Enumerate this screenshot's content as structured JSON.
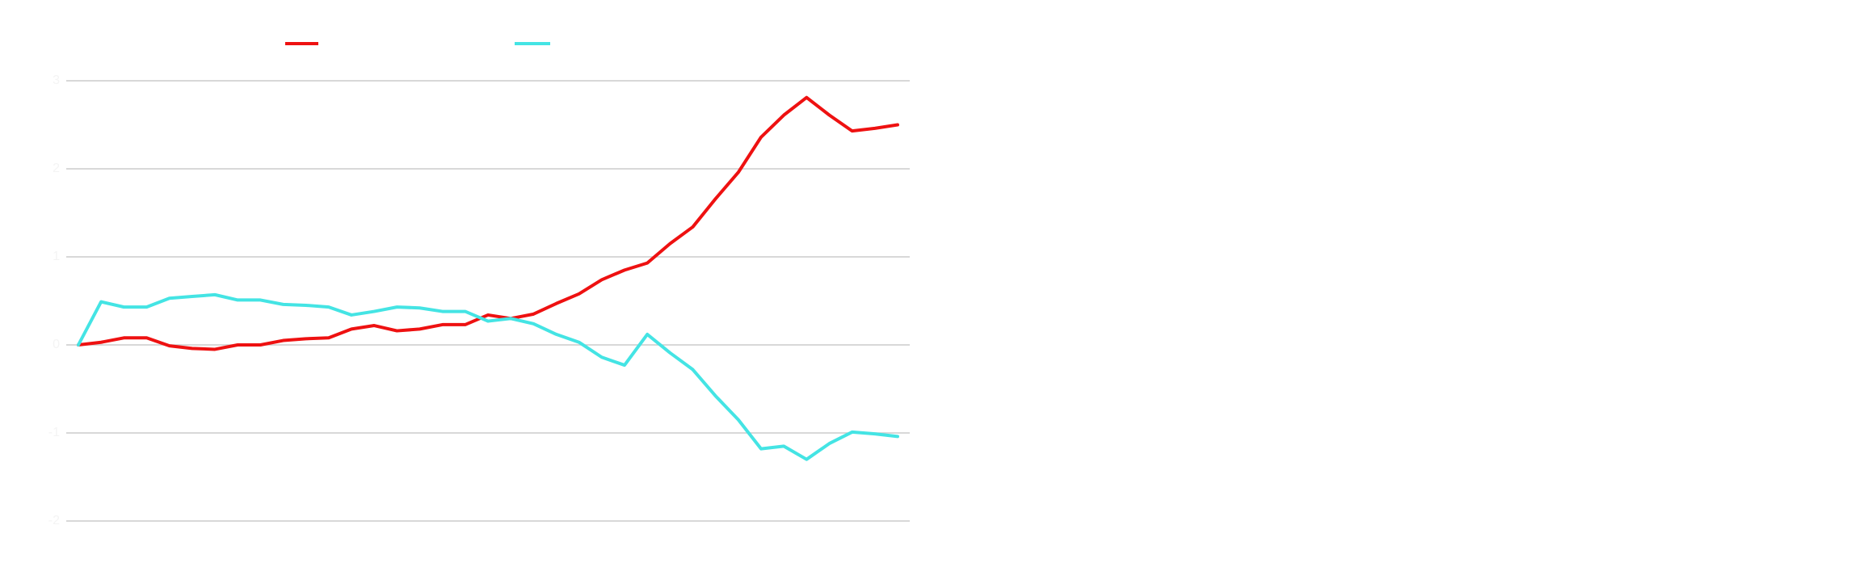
{
  "chart_data": {
    "type": "line",
    "categories": [
      null,
      null,
      null,
      null,
      null,
      null,
      null,
      null,
      null,
      null,
      null,
      null,
      null,
      null,
      null,
      null,
      null,
      null,
      null,
      null,
      null,
      null,
      null,
      null,
      null,
      null,
      null,
      null,
      null,
      null,
      null,
      null,
      null,
      null,
      null,
      null,
      null
    ],
    "series": [
      {
        "color": "#ee1111",
        "values": [
          0,
          0.03,
          0.08,
          0.08,
          -0.01,
          -0.04,
          -0.05,
          0,
          0,
          0.05,
          0.07,
          0.08,
          0.18,
          0.22,
          0.16,
          0.18,
          0.23,
          0.23,
          0.34,
          0.3,
          0.35,
          0.47,
          0.58,
          0.74,
          0.85,
          0.93,
          1.15,
          1.34,
          1.66,
          1.96,
          2.36,
          2.61,
          2.81,
          2.61,
          2.43,
          2.46,
          2.5
        ]
      },
      {
        "color": "#44e4e4",
        "values": [
          0,
          0.49,
          0.43,
          0.43,
          0.53,
          0.55,
          0.57,
          0.51,
          0.51,
          0.46,
          0.45,
          0.43,
          0.34,
          0.38,
          0.43,
          0.42,
          0.38,
          0.38,
          0.27,
          0.3,
          0.24,
          0.12,
          0.03,
          -0.14,
          -0.23,
          0.12,
          -0.09,
          -0.28,
          -0.58,
          -0.85,
          -1.18,
          -1.15,
          -1.3,
          -1.12,
          -0.99,
          -1.01,
          -1.04
        ]
      }
    ],
    "ylim": [
      -2,
      3
    ],
    "yticks": [
      -2,
      -1,
      0,
      1,
      2,
      3
    ],
    "grid": true
  }
}
